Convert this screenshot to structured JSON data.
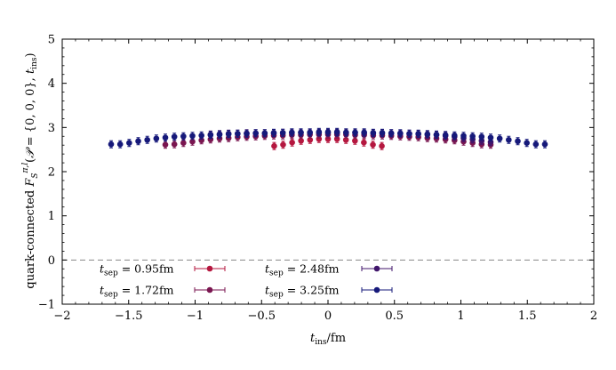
{
  "chart_data": {
    "type": "scatter",
    "title": "",
    "xlabel": "t_ins/fm",
    "ylabel": "quark-connected F_S^{π,l}(P = {0,0,0}, t_ins)",
    "xlim": [
      -2,
      2
    ],
    "ylim": [
      -1,
      5
    ],
    "xticks": [
      "−2",
      "−1.5",
      "−1",
      "−0.5",
      "0",
      "0.5",
      "1",
      "1.5",
      "2"
    ],
    "yticks": [
      "−1",
      "0",
      "1",
      "2",
      "3",
      "4",
      "5"
    ],
    "reference_line": {
      "y": 0,
      "style": "dashed"
    },
    "legend": {
      "placement": "bottom-left",
      "columns": 2
    },
    "series": [
      {
        "name": "t_sep = 0.95fm",
        "color": "#b5173f",
        "x": [
          -0.405,
          -0.338,
          -0.27,
          -0.203,
          -0.135,
          -0.068,
          0.0,
          0.068,
          0.135,
          0.203,
          0.27,
          0.338,
          0.405
        ],
        "y": [
          2.58,
          2.61,
          2.66,
          2.7,
          2.72,
          2.74,
          2.74,
          2.74,
          2.72,
          2.7,
          2.66,
          2.61,
          2.58
        ]
      },
      {
        "name": "t_sep = 1.72fm",
        "color": "#7a1650",
        "x": [
          -1.224,
          -1.156,
          -1.088,
          -1.02,
          -0.952,
          -0.884,
          -0.816,
          -0.748,
          -0.68,
          -0.612,
          -0.544,
          -0.476,
          -0.408,
          -0.34,
          -0.272,
          -0.204,
          -0.136,
          -0.068,
          0.0,
          0.068,
          0.136,
          0.204,
          0.272,
          0.34,
          0.408,
          0.476,
          0.544,
          0.612,
          0.68,
          0.748,
          0.816,
          0.884,
          0.952,
          1.02,
          1.088,
          1.156,
          1.224
        ],
        "y": [
          2.61,
          2.62,
          2.65,
          2.68,
          2.71,
          2.73,
          2.75,
          2.76,
          2.78,
          2.79,
          2.8,
          2.81,
          2.82,
          2.82,
          2.83,
          2.83,
          2.84,
          2.84,
          2.84,
          2.84,
          2.84,
          2.83,
          2.83,
          2.82,
          2.82,
          2.81,
          2.8,
          2.79,
          2.78,
          2.76,
          2.75,
          2.73,
          2.71,
          2.68,
          2.65,
          2.62,
          2.61
        ]
      },
      {
        "name": "t_sep = 2.48fm",
        "color": "#40156b",
        "x": [
          -0.884,
          -0.816,
          -0.748,
          -0.68,
          -0.612,
          -0.544,
          -0.476,
          -0.408,
          -0.34,
          -0.272,
          -0.204,
          -0.136,
          -0.068,
          0.0,
          0.068,
          0.136,
          0.204,
          0.272,
          0.34,
          0.408,
          0.476,
          0.544,
          0.612,
          0.68,
          0.748,
          0.816,
          0.884,
          0.952,
          1.02,
          1.088,
          1.156,
          1.224
        ],
        "y": [
          2.84,
          2.85,
          2.86,
          2.86,
          2.87,
          2.87,
          2.87,
          2.87,
          2.88,
          2.88,
          2.88,
          2.88,
          2.88,
          2.88,
          2.88,
          2.88,
          2.88,
          2.87,
          2.87,
          2.87,
          2.87,
          2.86,
          2.86,
          2.85,
          2.84,
          2.83,
          2.81,
          2.79,
          2.76,
          2.73,
          2.7,
          2.67
        ]
      },
      {
        "name": "t_sep = 3.25fm",
        "color": "#16197a",
        "x": [
          -1.632,
          -1.564,
          -1.496,
          -1.428,
          -1.36,
          -1.292,
          -1.224,
          -1.156,
          -1.088,
          -1.02,
          -0.952,
          -0.884,
          -0.816,
          -0.748,
          -0.68,
          -0.612,
          -0.544,
          -0.476,
          -0.408,
          -0.34,
          -0.272,
          -0.204,
          -0.136,
          -0.068,
          0.0,
          0.068,
          0.136,
          0.204,
          0.272,
          0.34,
          0.408,
          0.476,
          0.544,
          0.612,
          0.68,
          0.748,
          0.816,
          0.884,
          0.952,
          1.02,
          1.088,
          1.156,
          1.224,
          1.292,
          1.36,
          1.428,
          1.496,
          1.564,
          1.632
        ],
        "y": [
          2.62,
          2.62,
          2.65,
          2.69,
          2.72,
          2.75,
          2.77,
          2.79,
          2.8,
          2.81,
          2.82,
          2.83,
          2.84,
          2.85,
          2.86,
          2.86,
          2.87,
          2.87,
          2.88,
          2.88,
          2.89,
          2.89,
          2.89,
          2.9,
          2.9,
          2.9,
          2.89,
          2.89,
          2.89,
          2.88,
          2.88,
          2.87,
          2.87,
          2.86,
          2.86,
          2.85,
          2.84,
          2.83,
          2.82,
          2.81,
          2.8,
          2.79,
          2.77,
          2.75,
          2.72,
          2.69,
          2.65,
          2.62,
          2.62
        ]
      }
    ]
  }
}
